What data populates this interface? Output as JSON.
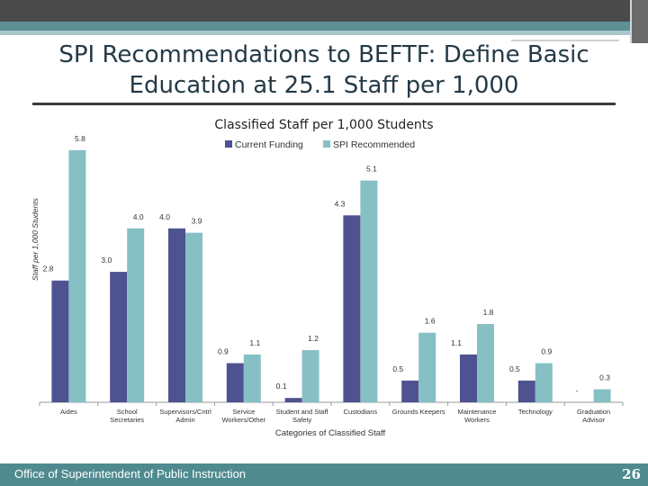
{
  "slide": {
    "title_line1": "SPI Recommendations to BEFTF:  Define Basic",
    "title_line2": "Education at 25.1 Staff per 1,000",
    "footer_text": "Office of Superintendent of Public Instruction",
    "page_number": "26"
  },
  "colors": {
    "current_funding": "#4f5290",
    "spi_recommended": "#86c0c4",
    "accent_teal": "#4f8a8f"
  },
  "chart_data": {
    "type": "bar",
    "title": "Classified Staff per 1,000 Students",
    "xlabel": "Categories of Classified Staff",
    "ylabel": "Staff per 1,000 Students",
    "legend_position": "top",
    "grid": false,
    "ylim": [
      0,
      5.9
    ],
    "categories": [
      [
        "Aides"
      ],
      [
        "School",
        "Secretaries"
      ],
      [
        "Supervisors/Cntrl",
        "Admin"
      ],
      [
        "Service",
        "Workers/Other"
      ],
      [
        "Student and Staff",
        "Safety"
      ],
      [
        "Custodians"
      ],
      [
        "Grounds Keepers"
      ],
      [
        "Maintenance",
        "Workers"
      ],
      [
        "Technology"
      ],
      [
        "Graduation",
        "Advisor"
      ]
    ],
    "series": [
      {
        "name": "Current Funding",
        "values": [
          2.8,
          3.0,
          4.0,
          0.9,
          0.1,
          4.3,
          0.5,
          1.1,
          0.5,
          0
        ],
        "labels": [
          "2.8",
          "3.0",
          "4.0",
          "0.9",
          "0.1",
          "4.3",
          "0.5",
          "1.1",
          "0.5",
          "-"
        ]
      },
      {
        "name": "SPI Recommended",
        "values": [
          5.8,
          4.0,
          3.9,
          1.1,
          1.2,
          5.1,
          1.6,
          1.8,
          0.9,
          0.3
        ],
        "labels": [
          "5.8",
          "4.0",
          "3.9",
          "1.1",
          "1.2",
          "5.1",
          "1.6",
          "1.8",
          "0.9",
          "0.3"
        ]
      }
    ]
  }
}
